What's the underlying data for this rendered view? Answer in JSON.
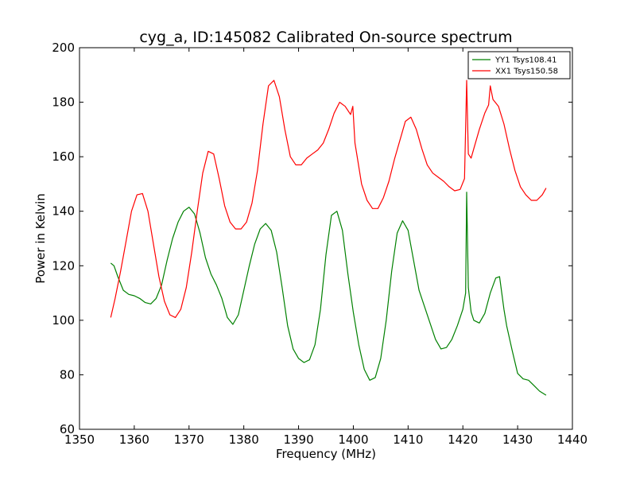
{
  "chart_data": {
    "type": "line",
    "title": "cyg_a, ID:145082 Calibrated On-source spectrum",
    "xlabel": "Frequency (MHz)",
    "ylabel": "Power in Kelvin",
    "xlim": [
      1350,
      1440
    ],
    "ylim": [
      60,
      200
    ],
    "xticks": [
      1350,
      1360,
      1370,
      1380,
      1390,
      1400,
      1410,
      1420,
      1430,
      1440
    ],
    "yticks": [
      60,
      80,
      100,
      120,
      140,
      160,
      180,
      200
    ],
    "grid": false,
    "legend_position": "top-right",
    "series": [
      {
        "name": "YY1 Tsys108.41",
        "color": "#008000",
        "x": [
          1355.7,
          1356.3,
          1357,
          1358,
          1359,
          1360,
          1361,
          1362,
          1363,
          1364,
          1365,
          1366,
          1367,
          1368,
          1369,
          1370,
          1371,
          1372,
          1373,
          1374,
          1375,
          1376,
          1377,
          1378,
          1379,
          1380,
          1381,
          1382,
          1383,
          1384,
          1385,
          1386,
          1387,
          1388,
          1389,
          1390,
          1391,
          1392,
          1393,
          1394,
          1395,
          1396,
          1397,
          1398,
          1399,
          1400,
          1401,
          1402,
          1403,
          1404,
          1405,
          1406,
          1407,
          1408,
          1409,
          1410,
          1411,
          1412,
          1413,
          1414,
          1415,
          1416,
          1417,
          1418,
          1419,
          1420,
          1420.5,
          1420.7,
          1421,
          1421.5,
          1422,
          1423,
          1424,
          1425,
          1426,
          1426.7,
          1427.5,
          1428,
          1429,
          1430,
          1431,
          1432,
          1433,
          1434,
          1435.2
        ],
        "values": [
          121,
          120,
          116,
          111,
          109.5,
          109,
          108,
          106.5,
          106,
          108,
          113,
          122,
          130,
          136,
          140,
          141.5,
          139,
          132,
          123,
          117,
          113,
          108,
          101,
          98.5,
          102,
          111,
          120,
          128,
          133.5,
          135.5,
          133,
          125,
          112,
          98,
          89.5,
          86,
          84.5,
          85.5,
          91,
          104,
          124,
          138.5,
          140,
          133,
          117,
          103,
          91,
          82,
          78,
          79,
          86,
          100,
          118,
          132,
          136.5,
          133,
          122,
          111,
          105,
          99,
          93,
          89.5,
          90,
          93,
          98,
          104,
          110,
          147,
          112,
          103,
          100,
          99,
          102.5,
          110,
          115.5,
          116,
          104,
          98,
          89,
          80.5,
          78.5,
          78,
          76,
          74,
          72.5
        ]
      },
      {
        "name": "XX1 Tsys150.58",
        "color": "#ff0000",
        "x": [
          1355.7,
          1356.5,
          1357.5,
          1358.5,
          1359.5,
          1360.5,
          1361.5,
          1362.5,
          1363.5,
          1364.5,
          1365.5,
          1366.5,
          1367.5,
          1368.5,
          1369.5,
          1370.5,
          1371.5,
          1372.5,
          1373.5,
          1374.5,
          1375.5,
          1376.5,
          1377.5,
          1378.5,
          1379.5,
          1380.5,
          1381.5,
          1382.5,
          1383.5,
          1384.5,
          1385.5,
          1386.5,
          1387.5,
          1388.5,
          1389.5,
          1390.5,
          1391.5,
          1392.5,
          1393.5,
          1394.5,
          1395.5,
          1396.5,
          1397.5,
          1398.5,
          1399.5,
          1399.9,
          1400.3,
          1400.7,
          1401.5,
          1402.5,
          1403.5,
          1404.5,
          1405.5,
          1406.5,
          1407.5,
          1408.5,
          1409.5,
          1410.5,
          1411.5,
          1412.5,
          1413.5,
          1414.5,
          1415.5,
          1416.5,
          1417.5,
          1418.5,
          1419.5,
          1420.3,
          1420.7,
          1421,
          1421.5,
          1422,
          1423,
          1424,
          1424.7,
          1425,
          1425.5,
          1426.5,
          1427.5,
          1428.5,
          1429.5,
          1430.5,
          1431.5,
          1432.5,
          1433.5,
          1434.5,
          1435.2
        ],
        "values": [
          101,
          108,
          118,
          129,
          140,
          146,
          146.5,
          140,
          128,
          116,
          107,
          102,
          101,
          104,
          112,
          125,
          140,
          154,
          162,
          161,
          152,
          142,
          136,
          133.5,
          133.5,
          136,
          143,
          155,
          172,
          186,
          188,
          182,
          170,
          160,
          157,
          157,
          159.5,
          161,
          162.5,
          165,
          170,
          176,
          180,
          178.5,
          175.5,
          178.5,
          165,
          160,
          150,
          144,
          141,
          141,
          145,
          151,
          159,
          166,
          173,
          174.5,
          170,
          163,
          157,
          154,
          152.5,
          151,
          149,
          147.5,
          148,
          152,
          188,
          161,
          159.5,
          163,
          170,
          176,
          179,
          186,
          181,
          178.5,
          172,
          163,
          155,
          149,
          146,
          144,
          144,
          146,
          148.5
        ]
      }
    ]
  }
}
